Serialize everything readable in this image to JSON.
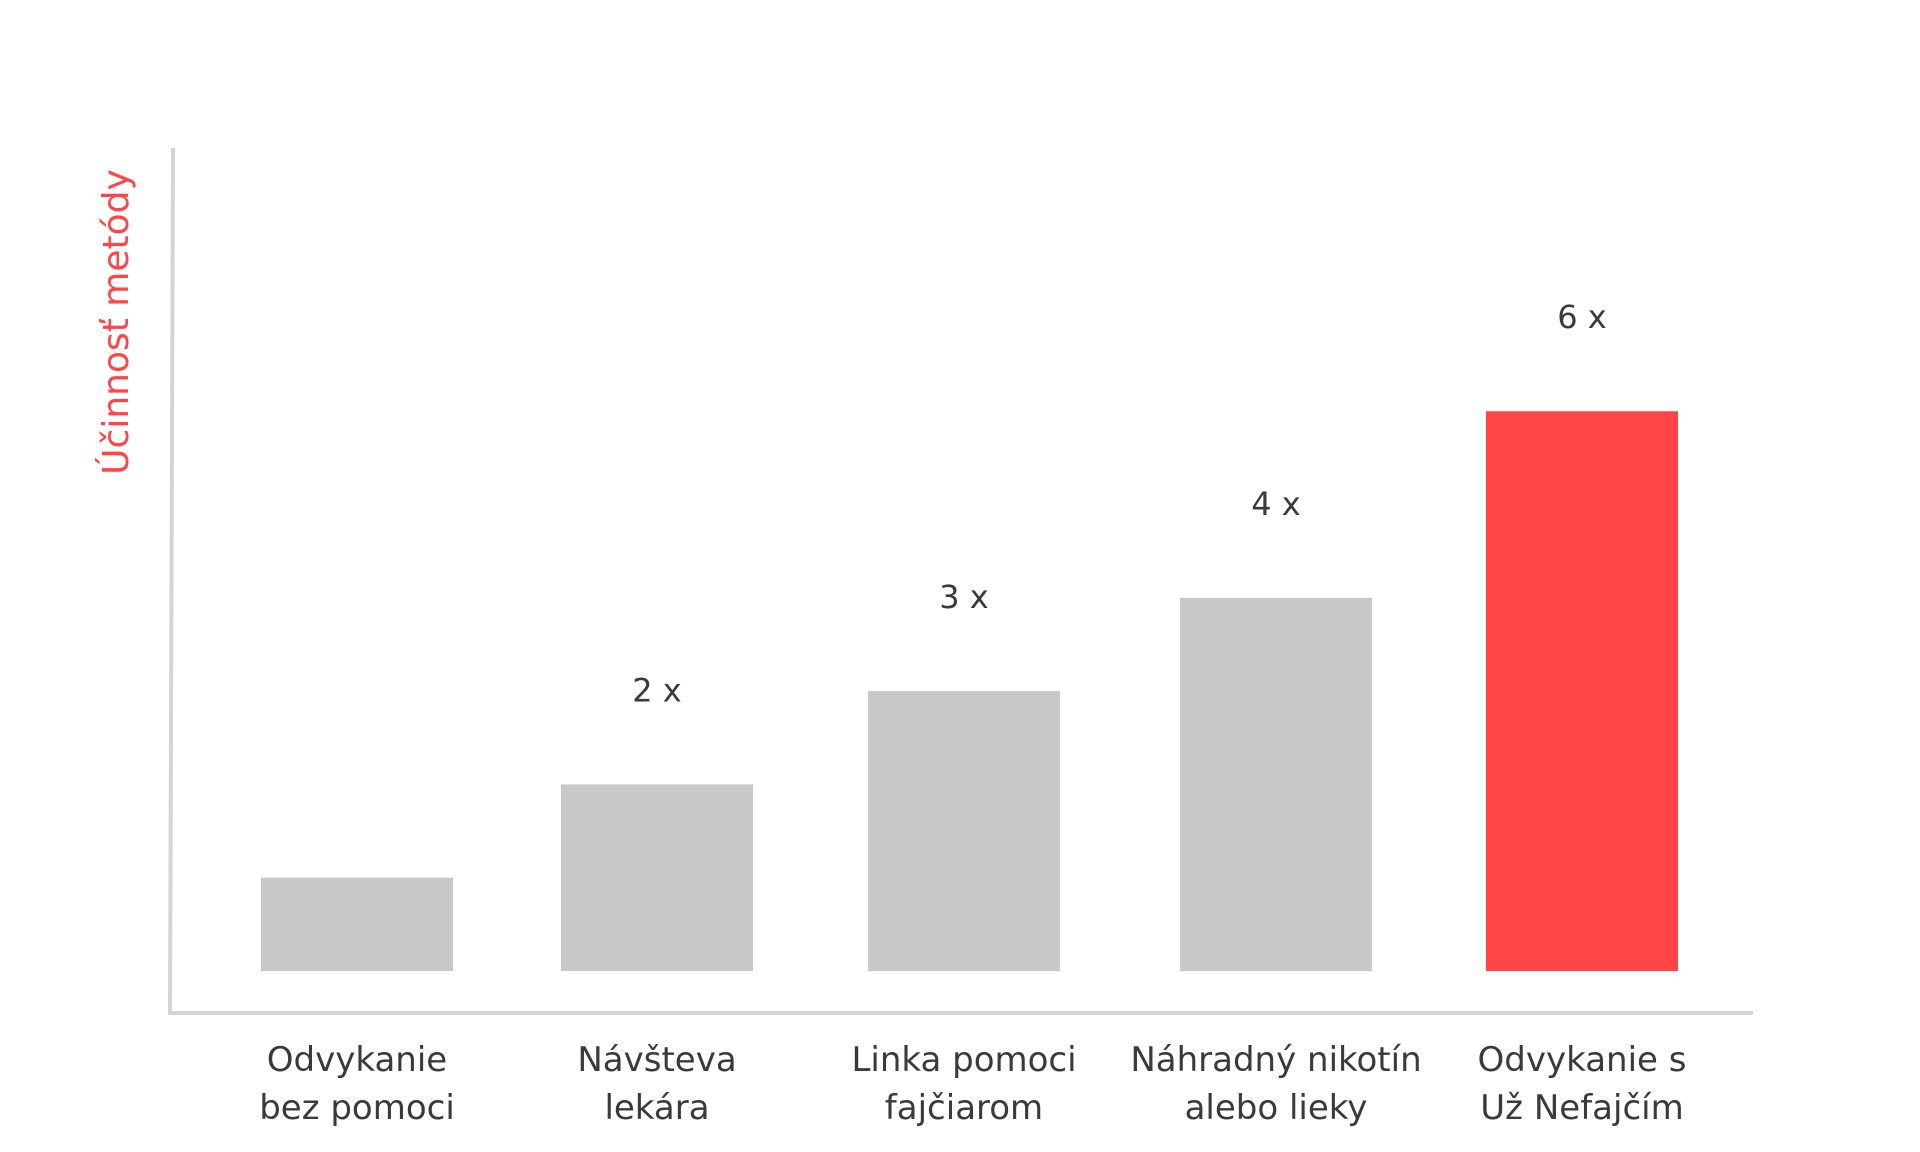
{
  "chart_data": {
    "type": "bar",
    "title": "",
    "xlabel": "",
    "ylabel": "Účinnosť metódy",
    "ylim": [
      0,
      7
    ],
    "grid": false,
    "categories": [
      [
        "Odvykanie",
        "bez pomoci"
      ],
      [
        "Návšteva",
        "lekára"
      ],
      [
        "Linka pomoci",
        "fajčiarom"
      ],
      [
        "Náhradný nikotín",
        "alebo lieky"
      ],
      [
        "Odvykanie s",
        "Už Nefajčím"
      ]
    ],
    "values": [
      1,
      2,
      3,
      4,
      6
    ],
    "data_labels": [
      "",
      "2 x",
      "3 x",
      "4 x",
      "6 x"
    ],
    "bar_colors": [
      "#c8c8c8",
      "#c8c8c8",
      "#c8c8c8",
      "#c8c8c8",
      "#ff4545"
    ],
    "colors": {
      "axis": "#d4d4d4",
      "text": "#3a3a3a",
      "ylabel": "#ff4545",
      "bar": "#c8c8c8",
      "highlight": "#ff4545"
    }
  }
}
